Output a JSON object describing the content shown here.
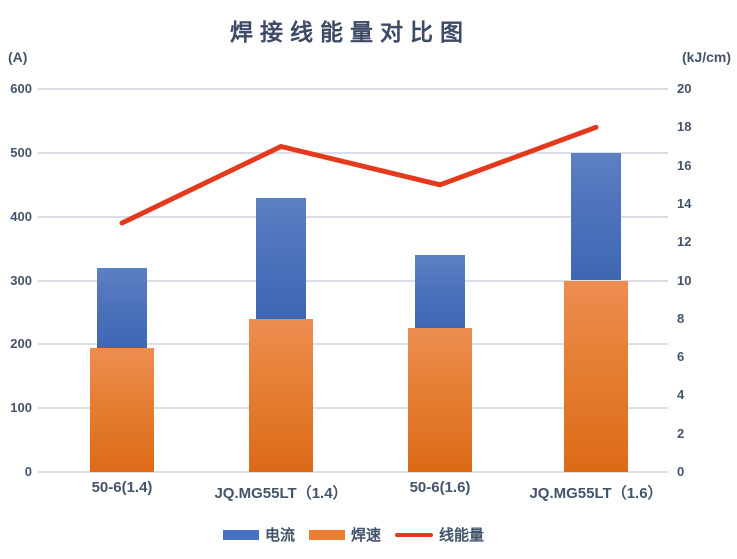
{
  "chart_data": {
    "type": "combo-bar-line",
    "title": "焊接线能量对比图",
    "categories": [
      "50-6(1.4)",
      "JQ.MG55LT（1.4）",
      "50-6(1.6)",
      "JQ.MG55LT（1.6）"
    ],
    "highlighted_categories": [
      1,
      3
    ],
    "series": [
      {
        "name": "电流",
        "type": "bar",
        "axis": "left",
        "color": "#4472C4",
        "values": [
          320,
          430,
          340,
          500
        ]
      },
      {
        "name": "焊速",
        "type": "bar",
        "axis": "left",
        "color": "#ED7D31",
        "values": [
          195,
          240,
          225,
          300
        ],
        "right_axis_equivalent": [
          6.5,
          8.0,
          7.5,
          10.0
        ]
      },
      {
        "name": "线能量",
        "type": "line",
        "axis": "right",
        "color": "#E43A1B",
        "values": [
          13,
          17,
          15,
          18
        ]
      }
    ],
    "left_axis": {
      "label": "(A)",
      "min": 0,
      "max": 600,
      "step": 100,
      "tick_labels": [
        "0",
        "100",
        "200",
        "300",
        "400",
        "500",
        "600"
      ]
    },
    "right_axis": {
      "label": "(kJ/cm)",
      "min": 0,
      "max": 20,
      "step": 2,
      "tick_labels": [
        "0",
        "2",
        "4",
        "6",
        "8",
        "10",
        "12",
        "14",
        "16",
        "18",
        "20"
      ]
    },
    "grid": true,
    "legend_position": "bottom",
    "colors": {
      "gridline": "#D9DEE7",
      "text": "#44546A",
      "title": "#3E4B66",
      "bar_blue_top": "#5D80C4",
      "bar_blue_bottom": "#3E67B3",
      "bar_orange_top": "#EC8D51",
      "bar_orange_bottom": "#DC6A17",
      "line_red": "#E43A1B"
    }
  }
}
